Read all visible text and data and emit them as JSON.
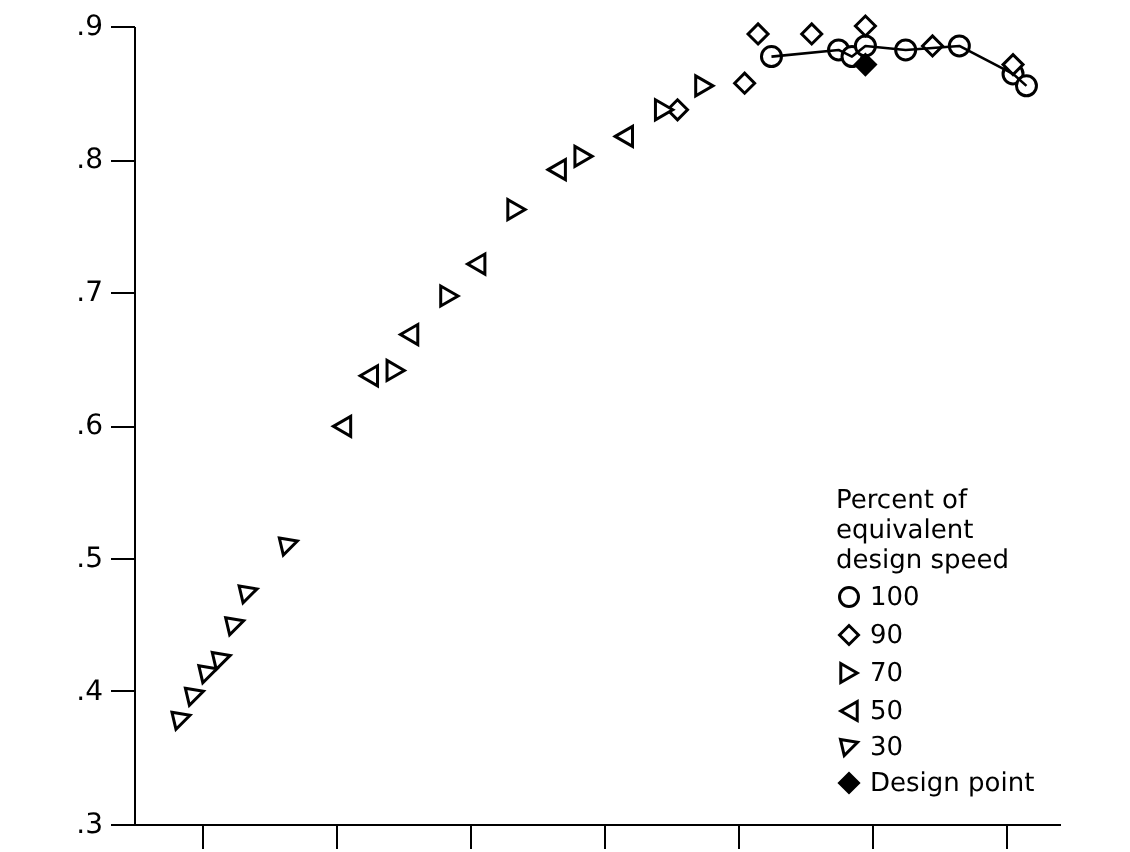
{
  "chart_data": {
    "type": "scatter",
    "legend_title": "Percent of\nequivalent\ndesign speed",
    "legend": "bottom right",
    "tick_labels": "y",
    "categories": [
      null,
      null,
      null,
      null,
      null,
      null,
      null,
      null,
      null,
      null,
      null,
      null,
      null,
      null,
      null,
      null,
      null,
      null,
      null,
      null,
      null,
      null,
      null,
      null,
      null,
      null,
      null,
      null,
      null,
      null,
      null,
      null,
      null,
      null,
      null,
      null,
      null,
      null,
      null,
      null,
      null,
      null,
      null,
      null,
      null,
      null,
      null,
      null,
      null,
      null,
      null,
      null,
      null,
      null,
      null,
      null,
      null,
      null,
      null,
      null,
      null,
      null,
      null,
      null,
      null,
      null,
      null,
      null,
      null
    ],
    "ylim": [
      0.3,
      0.9
    ],
    "yticks": [
      {
        "value": 0.3,
        "label": ".3"
      },
      {
        "value": 0.4,
        "label": ".4"
      },
      {
        "value": 0.5,
        "label": ".5"
      },
      {
        "value": 0.6,
        "label": ".6"
      },
      {
        "value": 0.7,
        "label": ".7"
      },
      {
        "value": 0.8,
        "label": ".8"
      },
      {
        "value": 0.9,
        "label": ".9"
      }
    ],
    "series": [
      {
        "name": "100",
        "type": "line",
        "marker": "circle",
        "color": "#000000",
        "values": [
          null,
          null,
          null,
          null,
          null,
          null,
          null,
          null,
          null,
          null,
          null,
          null,
          null,
          null,
          null,
          null,
          null,
          null,
          null,
          null,
          null,
          null,
          null,
          null,
          null,
          null,
          null,
          null,
          null,
          null,
          null,
          null,
          null,
          null,
          null,
          null,
          null,
          null,
          null,
          null,
          null,
          null,
          null,
          null,
          null,
          null,
          null,
          0.877,
          null,
          null,
          null,
          null,
          0.882,
          0.877,
          0.885,
          null,
          null,
          0.882,
          null,
          null,
          null,
          0.885,
          null,
          null,
          null,
          0.864,
          0.855,
          null,
          null
        ]
      },
      {
        "name": "90",
        "marker": "diamond",
        "color": "#000000",
        "values": [
          null,
          null,
          null,
          null,
          null,
          null,
          null,
          null,
          null,
          null,
          null,
          null,
          null,
          null,
          null,
          null,
          null,
          null,
          null,
          null,
          null,
          null,
          null,
          null,
          null,
          null,
          null,
          null,
          null,
          null,
          null,
          null,
          null,
          null,
          null,
          null,
          null,
          null,
          null,
          null,
          0.837,
          null,
          null,
          null,
          null,
          0.857,
          0.894,
          null,
          null,
          null,
          0.894,
          null,
          null,
          null,
          0.9,
          null,
          null,
          null,
          null,
          0.885,
          null,
          null,
          null,
          null,
          null,
          0.871,
          null,
          null,
          null
        ]
      },
      {
        "name": "70",
        "marker": "triangle-right",
        "color": "#000000",
        "values": [
          null,
          null,
          null,
          null,
          null,
          null,
          null,
          null,
          null,
          null,
          null,
          null,
          null,
          null,
          null,
          null,
          null,
          null,
          null,
          0.641,
          null,
          null,
          null,
          0.697,
          null,
          null,
          null,
          null,
          0.762,
          null,
          null,
          null,
          null,
          0.802,
          null,
          null,
          null,
          null,
          null,
          0.837,
          null,
          null,
          0.855,
          null,
          null,
          null,
          null,
          null,
          null,
          null,
          null,
          null,
          null,
          null,
          null,
          null,
          null,
          null,
          null,
          null,
          null,
          null,
          null,
          null,
          null,
          null,
          null,
          null,
          null
        ]
      },
      {
        "name": "50",
        "marker": "triangle-left",
        "color": "#000000",
        "values": [
          null,
          null,
          null,
          null,
          null,
          null,
          null,
          null,
          null,
          null,
          null,
          null,
          null,
          null,
          null,
          0.599,
          null,
          0.637,
          null,
          null,
          0.668,
          null,
          null,
          null,
          null,
          0.721,
          null,
          null,
          null,
          null,
          null,
          0.792,
          null,
          null,
          null,
          null,
          0.817,
          null,
          null,
          null,
          null,
          null,
          null,
          null,
          null,
          null,
          null,
          null,
          null,
          null,
          null,
          null,
          null,
          null,
          null,
          null,
          null,
          null,
          null,
          null,
          null,
          null,
          null,
          null,
          null,
          null,
          null,
          null,
          null
        ]
      },
      {
        "name": "30",
        "marker": "triangle-down",
        "color": "#000000",
        "values": [
          null,
          null,
          null,
          0.378,
          0.396,
          0.413,
          0.423,
          0.449,
          0.473,
          null,
          null,
          0.509,
          null,
          null,
          null,
          null,
          null,
          null,
          null,
          null,
          null,
          null,
          null,
          null,
          null,
          null,
          null,
          null,
          null,
          null,
          null,
          null,
          null,
          null,
          null,
          null,
          null,
          null,
          null,
          null,
          null,
          null,
          null,
          null,
          null,
          null,
          null,
          null,
          null,
          null,
          null,
          null,
          null,
          null,
          null,
          null,
          null,
          null,
          null,
          null,
          null,
          null,
          null,
          null,
          null,
          null,
          null,
          null,
          null
        ]
      },
      {
        "name": "Design point",
        "color": "#000000",
        "values": [
          null,
          null,
          null,
          null,
          null,
          null,
          null,
          null,
          null,
          null,
          null,
          null,
          null,
          null,
          null,
          null,
          null,
          null,
          null,
          null,
          null,
          null,
          null,
          null,
          null,
          null,
          null,
          null,
          null,
          null,
          null,
          null,
          null,
          null,
          null,
          null,
          null,
          null,
          null,
          null,
          null,
          null,
          null,
          null,
          null,
          null,
          null,
          null,
          null,
          null,
          null,
          null,
          null,
          null,
          0.871,
          null,
          null,
          null,
          null,
          null,
          null,
          null,
          null,
          null,
          null,
          null,
          null,
          null,
          null
        ]
      }
    ]
  }
}
